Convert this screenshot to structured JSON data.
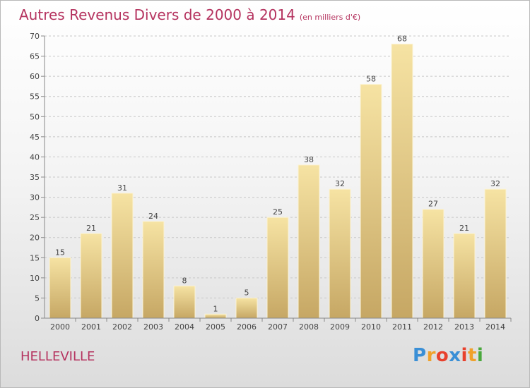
{
  "title": "Autres Revenus Divers de 2000 à 2014",
  "unit": "(en milliers d'€)",
  "location": "HELLEVILLE",
  "logo": {
    "letters": [
      "P",
      "r",
      "o",
      "x",
      "i",
      "t",
      "i"
    ],
    "colors": [
      "#3a8fd6",
      "#f0a12b",
      "#e8412d",
      "#3a8fd6",
      "#e8412d",
      "#f0a12b",
      "#4aa83c"
    ]
  },
  "colors": {
    "title": "#b5335f",
    "bar_light": "#f6e3a3",
    "bar_dark": "#c6a764",
    "grid": "#c8c8c8"
  },
  "chart_data": {
    "type": "bar",
    "title": "Autres Revenus Divers de 2000 à 2014",
    "subtitle": "(en milliers d'€)",
    "xlabel": "",
    "ylabel": "",
    "categories": [
      "2000",
      "2001",
      "2002",
      "2003",
      "2004",
      "2005",
      "2006",
      "2007",
      "2008",
      "2009",
      "2010",
      "2011",
      "2012",
      "2013",
      "2014"
    ],
    "values": [
      15,
      21,
      31,
      24,
      8,
      1,
      5,
      25,
      38,
      32,
      58,
      68,
      27,
      21,
      32
    ],
    "ylim": [
      0,
      70
    ],
    "yticks": [
      0,
      5,
      10,
      15,
      20,
      25,
      30,
      35,
      40,
      45,
      50,
      55,
      60,
      65,
      70
    ],
    "grid": true,
    "data_labels": true
  }
}
